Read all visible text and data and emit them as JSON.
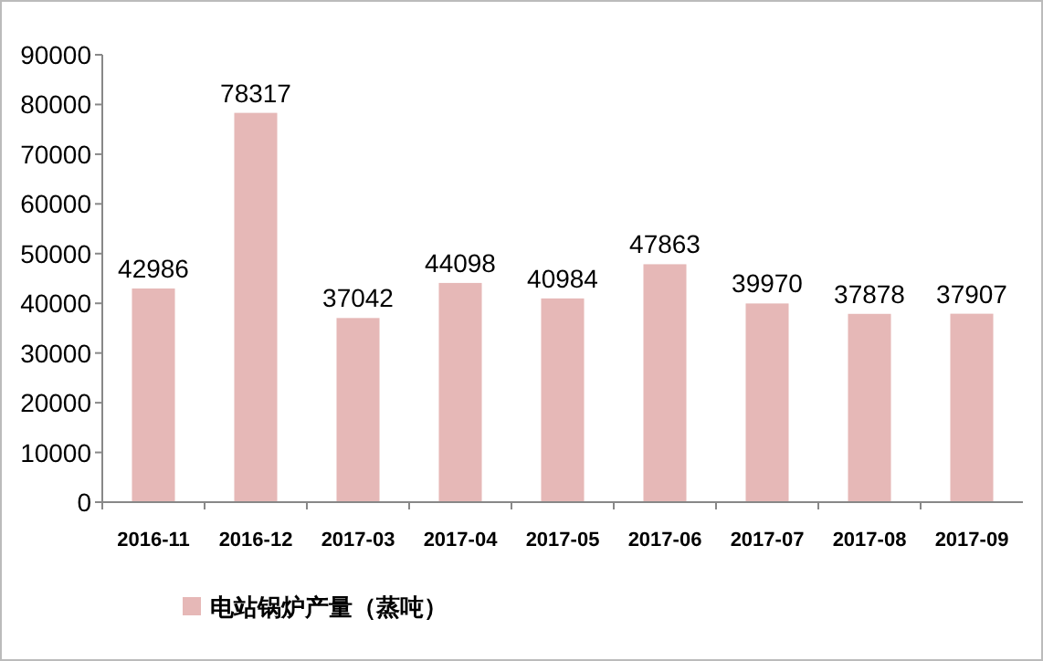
{
  "chart_data": {
    "type": "bar",
    "categories": [
      "2016-11",
      "2016-12",
      "2017-03",
      "2017-04",
      "2017-05",
      "2017-06",
      "2017-07",
      "2017-08",
      "2017-09"
    ],
    "series": [
      {
        "name": "电站锅炉产量（蒸吨）",
        "color": "#e6b8b7",
        "values": [
          42986,
          78317,
          37042,
          44098,
          40984,
          47863,
          39970,
          37878,
          37907
        ]
      }
    ],
    "ylim": [
      0,
      90000
    ],
    "yticks": [
      0,
      10000,
      20000,
      30000,
      40000,
      50000,
      60000,
      70000,
      80000,
      90000
    ],
    "data_labels": true,
    "legend": "bottom left"
  }
}
